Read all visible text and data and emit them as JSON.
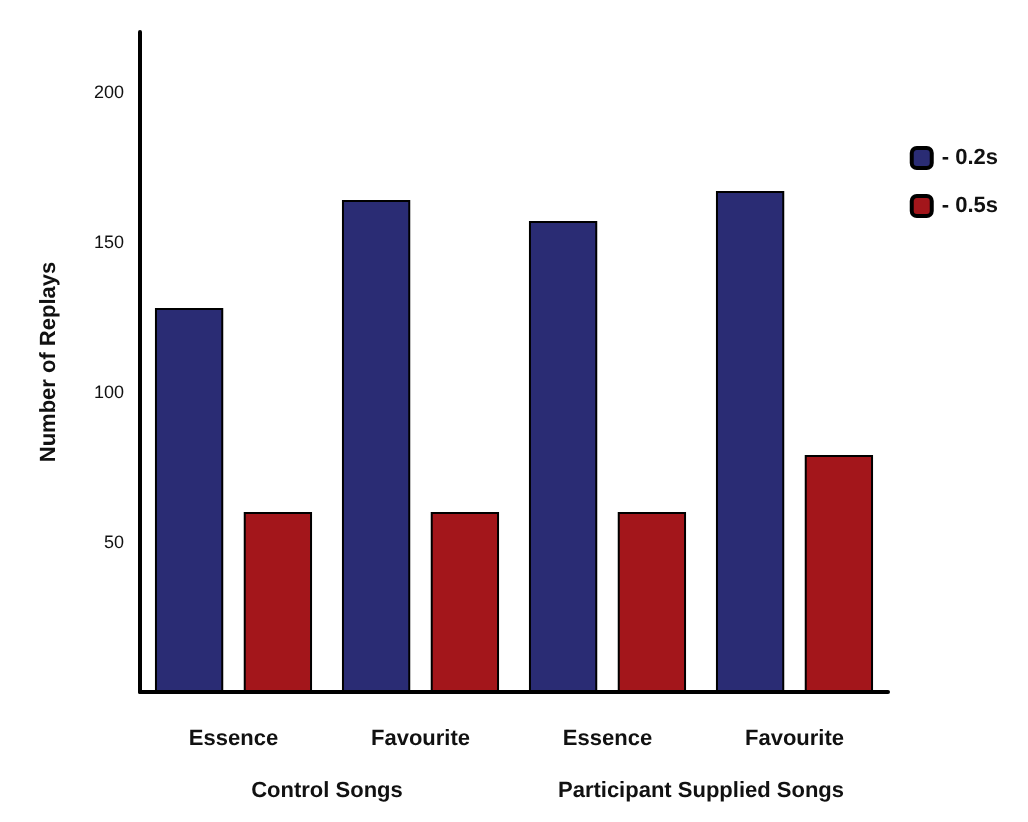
{
  "chart_data": {
    "type": "bar",
    "ylabel": "Number of Replays",
    "categories": [
      "Essence",
      "Favourite",
      "Essence",
      "Favourite"
    ],
    "series": [
      {
        "name": "- 0.2s",
        "color": "#2a2c74",
        "values": [
          128,
          164,
          157,
          167
        ]
      },
      {
        "name": "- 0.5s",
        "color": "#a3161b",
        "values": [
          60,
          60,
          60,
          79
        ]
      }
    ],
    "ylim": [
      0,
      220
    ],
    "yticks": [
      50,
      100,
      150,
      200
    ],
    "grid": false,
    "legend": "top right",
    "annotations": [
      "Control Songs",
      "Participant Supplied Songs"
    ]
  }
}
